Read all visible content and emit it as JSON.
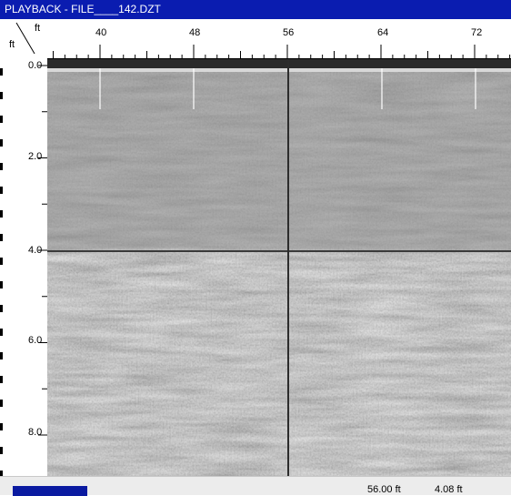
{
  "window": {
    "title": "PLAYBACK - FILE____142.DZT"
  },
  "rulers": {
    "horizontal": {
      "unit": "ft",
      "labels": [
        "40",
        "48",
        "56",
        "64",
        "72"
      ]
    },
    "vertical": {
      "unit": "ft",
      "labels": [
        "0.0",
        "2.0",
        "4.0",
        "6.0",
        "8.0"
      ]
    }
  },
  "status": {
    "position": "56.00 ft",
    "depth": "4.08 ft"
  },
  "colors": {
    "title_bar": "#0a1cb0",
    "status_block": "#0a1aa0",
    "marker": "#ffffff"
  }
}
